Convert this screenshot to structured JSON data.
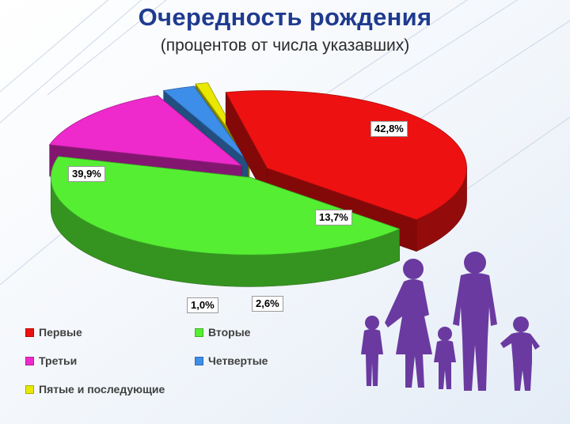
{
  "title": "Очередность рождения",
  "subtitle": "(процентов от числа указавших)",
  "chart_data": {
    "type": "pie",
    "title": "Очередность рождения",
    "subtitle": "(процентов от числа указавших)",
    "legend_position": "bottom-left",
    "slices": [
      {
        "name": "Первые",
        "value": 39.9,
        "label": "39,9%",
        "color": "#ee1111"
      },
      {
        "name": "Вторые",
        "value": 42.8,
        "label": "42,8%",
        "color": "#55ee33"
      },
      {
        "name": "Третьи",
        "value": 13.7,
        "label": "13,7%",
        "color": "#ee2acc"
      },
      {
        "name": "Четвертые",
        "value": 2.6,
        "label": "2,6%",
        "color": "#3d8ee8"
      },
      {
        "name": "Пятые и последующие",
        "value": 1.0,
        "label": "1,0%",
        "color": "#e8e800"
      }
    ]
  },
  "decoration": {
    "family_icon": "family-silhouette-icon",
    "family_color": "#6a3aa0"
  }
}
